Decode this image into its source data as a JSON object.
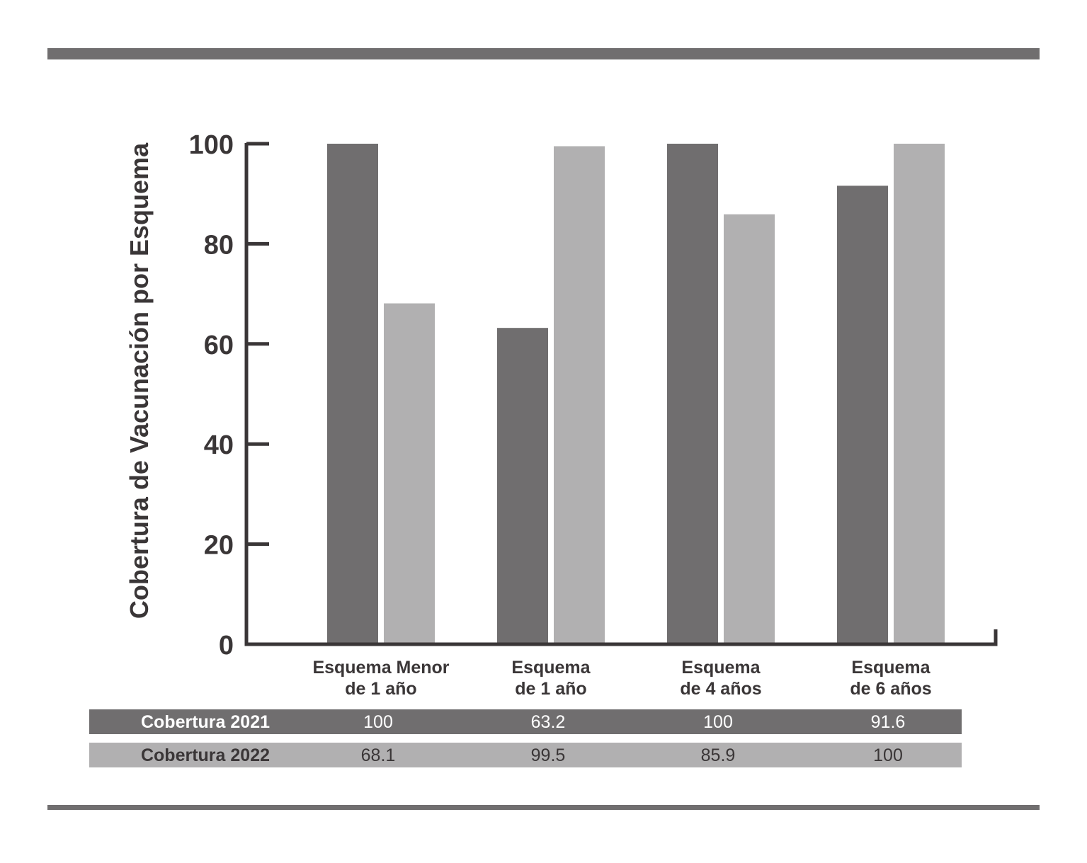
{
  "chart_data": {
    "type": "bar",
    "ylabel": "Cobertura de Vacunación por Esquema",
    "xlabel": "",
    "title": "",
    "ylim": [
      0,
      100
    ],
    "yticks": [
      0,
      20,
      40,
      60,
      80,
      100
    ],
    "grid": false,
    "categories": [
      [
        "Esquema Menor",
        "de 1 año"
      ],
      [
        "Esquema",
        "de 1 año"
      ],
      [
        "Esquema",
        "de 4 años"
      ],
      [
        "Esquema",
        "de 6 años"
      ]
    ],
    "series": [
      {
        "name": "Cobertura 2021",
        "values": [
          100,
          63.2,
          100,
          91.6
        ],
        "color": "#706e6f",
        "value_labels": [
          "100",
          "63.2",
          "100",
          "91.6"
        ]
      },
      {
        "name": "Cobertura 2022",
        "values": [
          68.1,
          99.5,
          85.9,
          100
        ],
        "color": "#b1b0b1",
        "value_labels": [
          "68.1",
          "99.5",
          "85.9",
          "100"
        ]
      }
    ],
    "colors": {
      "axis": "#3a3637",
      "rule": "#706e6f",
      "text": "#3a3637",
      "table_text_light": "#ffffff"
    }
  }
}
